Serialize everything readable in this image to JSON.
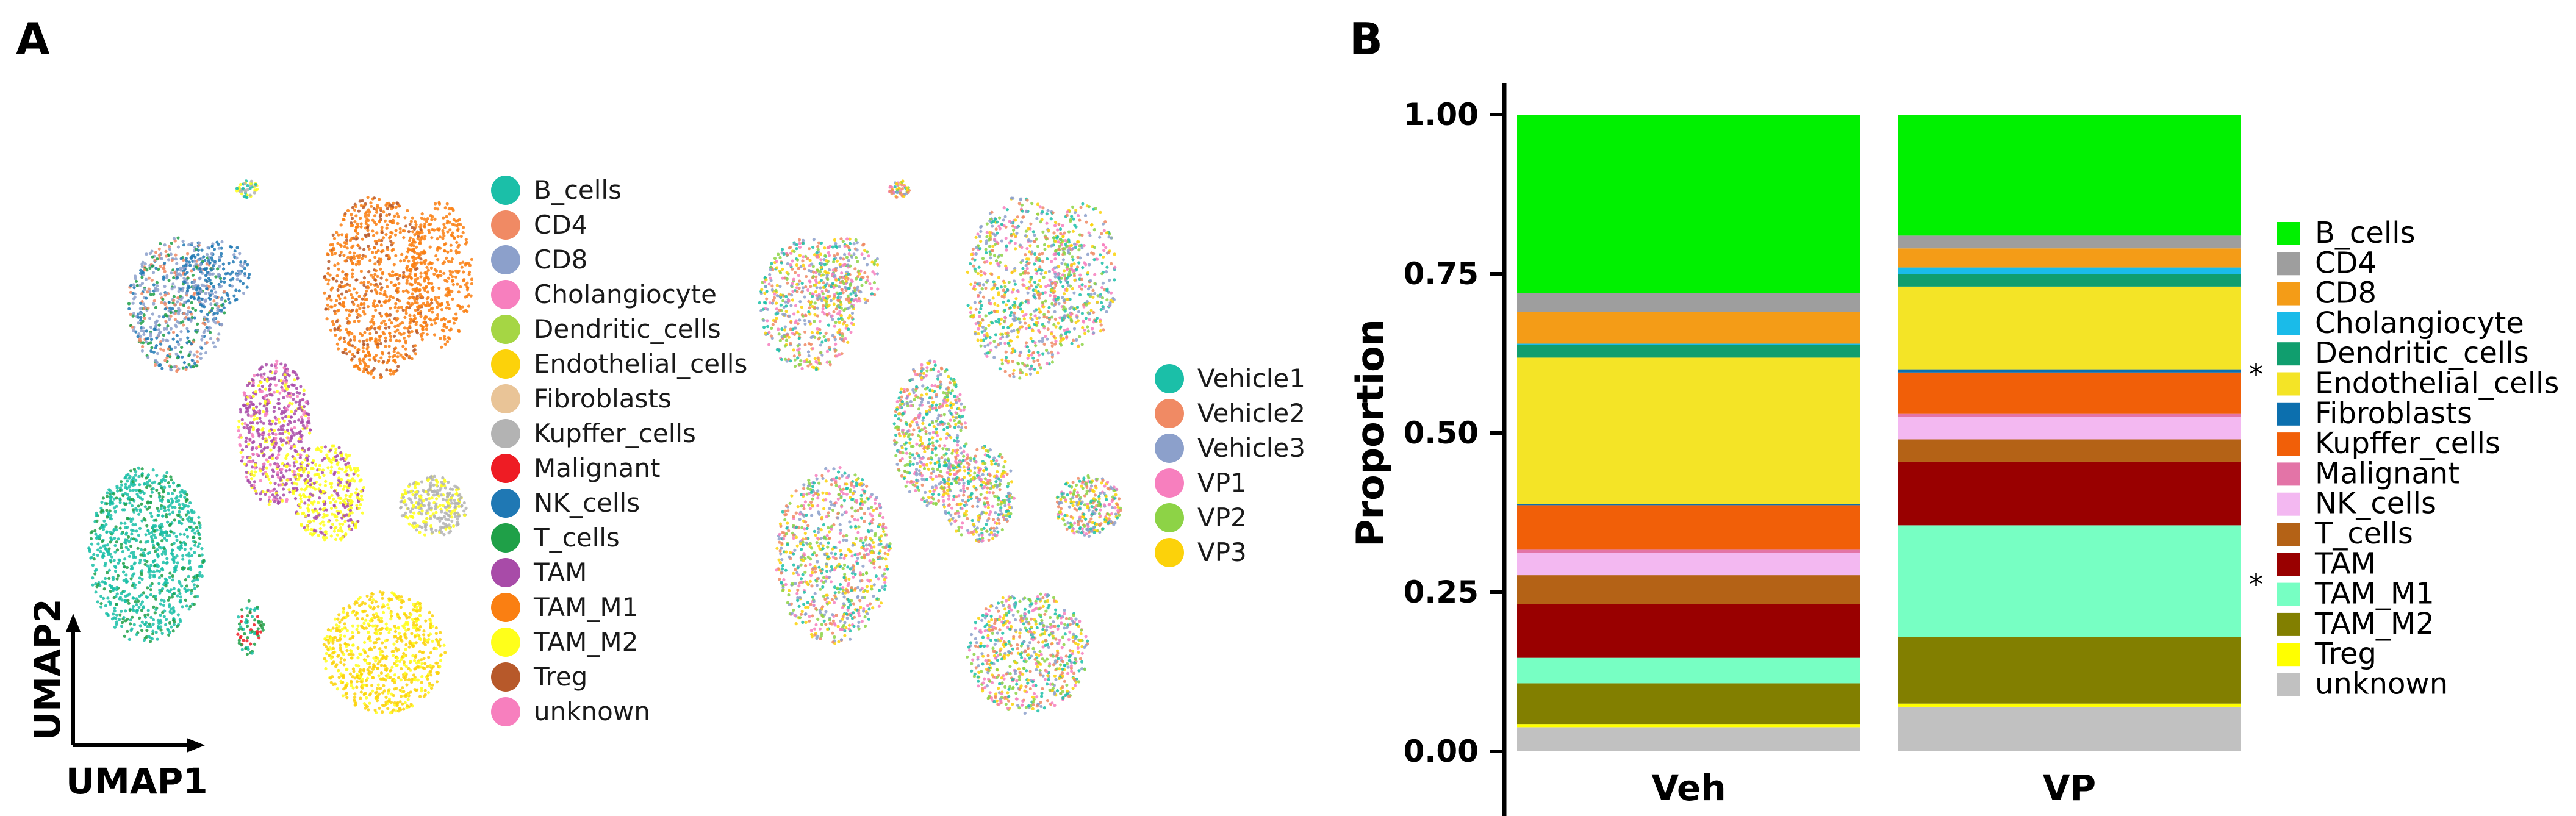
{
  "panel_a": {
    "label": "A",
    "umap_x_label": "UMAP1",
    "umap_y_label": "UMAP2",
    "celltype_legend": [
      {
        "label": "B_cells",
        "color": "#1bbfa8"
      },
      {
        "label": "CD4",
        "color": "#f08a64"
      },
      {
        "label": "CD8",
        "color": "#8ca0cb"
      },
      {
        "label": "Cholangiocyte",
        "color": "#f77fbe"
      },
      {
        "label": "Dendritic_cells",
        "color": "#a5d644"
      },
      {
        "label": "Endothelial_cells",
        "color": "#fcd20a"
      },
      {
        "label": "Fibroblasts",
        "color": "#e9c497"
      },
      {
        "label": "Kupffer_cells",
        "color": "#b3b3b3"
      },
      {
        "label": "Malignant",
        "color": "#ee1c24"
      },
      {
        "label": "NK_cells",
        "color": "#1f78b4"
      },
      {
        "label": "T_cells",
        "color": "#1fa048"
      },
      {
        "label": "TAM",
        "color": "#a84ba8"
      },
      {
        "label": "TAM_M1",
        "color": "#fa7f12"
      },
      {
        "label": "TAM_M2",
        "color": "#ffff1a"
      },
      {
        "label": "Treg",
        "color": "#b7592a"
      },
      {
        "label": "unknown",
        "color": "#f77fbe"
      }
    ],
    "sample_legend": [
      {
        "label": "Vehicle1",
        "color": "#1bbfa8"
      },
      {
        "label": "Vehicle2",
        "color": "#f08a64"
      },
      {
        "label": "Vehicle3",
        "color": "#8ca0cb"
      },
      {
        "label": "VP1",
        "color": "#f77fbe"
      },
      {
        "label": "VP2",
        "color": "#8dd346"
      },
      {
        "label": "VP3",
        "color": "#fcd20a"
      }
    ]
  },
  "panel_b": {
    "label": "B",
    "significance_marker": "*"
  },
  "chart_data": {
    "type": "bar",
    "stacked": true,
    "categories": [
      "Veh",
      "VP"
    ],
    "ylabel": "Proportion",
    "xlabel": "",
    "ylim": [
      0,
      1
    ],
    "yticks": [
      "0.00",
      "0.25",
      "0.50",
      "0.75",
      "1.00"
    ],
    "legend_placement": "right",
    "stack_order_bottom_to_top": [
      "unknown",
      "Treg",
      "TAM_M2",
      "TAM_M1",
      "TAM",
      "T_cells",
      "NK_cells",
      "Malignant",
      "Kupffer_cells",
      "Fibroblasts",
      "Endothelial_cells",
      "Dendritic_cells",
      "Cholangiocyte",
      "CD8",
      "CD4",
      "B_cells"
    ],
    "series": [
      {
        "name": "B_cells",
        "color": "#00f100",
        "values": [
          0.28,
          0.19
        ]
      },
      {
        "name": "CD4",
        "color": "#9e9e9e",
        "values": [
          0.03,
          0.02
        ]
      },
      {
        "name": "CD8",
        "color": "#f49c17",
        "values": [
          0.05,
          0.03
        ]
      },
      {
        "name": "Cholangiocyte",
        "color": "#1abbe9",
        "values": [
          0.002,
          0.01
        ]
      },
      {
        "name": "Dendritic_cells",
        "color": "#109e6e",
        "values": [
          0.02,
          0.02
        ]
      },
      {
        "name": "Endothelial_cells",
        "color": "#f4e426",
        "values": [
          0.23,
          0.13
        ]
      },
      {
        "name": "Fibroblasts",
        "color": "#0c6fae",
        "values": [
          0.002,
          0.005
        ]
      },
      {
        "name": "Kupffer_cells",
        "color": "#f15f08",
        "values": [
          0.07,
          0.065
        ]
      },
      {
        "name": "Malignant",
        "color": "#e374a7",
        "values": [
          0.005,
          0.005
        ]
      },
      {
        "name": "NK_cells",
        "color": "#f3b8f1",
        "values": [
          0.035,
          0.035
        ]
      },
      {
        "name": "T_cells",
        "color": "#b46216",
        "values": [
          0.045,
          0.035
        ]
      },
      {
        "name": "TAM",
        "color": "#990000",
        "values": [
          0.085,
          0.1
        ]
      },
      {
        "name": "TAM_M1",
        "color": "#77ffc3",
        "values": [
          0.04,
          0.175
        ]
      },
      {
        "name": "TAM_M2",
        "color": "#827f00",
        "values": [
          0.064,
          0.105
        ]
      },
      {
        "name": "Treg",
        "color": "#ffff00",
        "values": [
          0.005,
          0.005
        ]
      },
      {
        "name": "unknown",
        "color": "#c1c1c1",
        "values": [
          0.038,
          0.07
        ]
      }
    ],
    "significant_series": [
      "Fibroblasts",
      "TAM_M1"
    ]
  }
}
